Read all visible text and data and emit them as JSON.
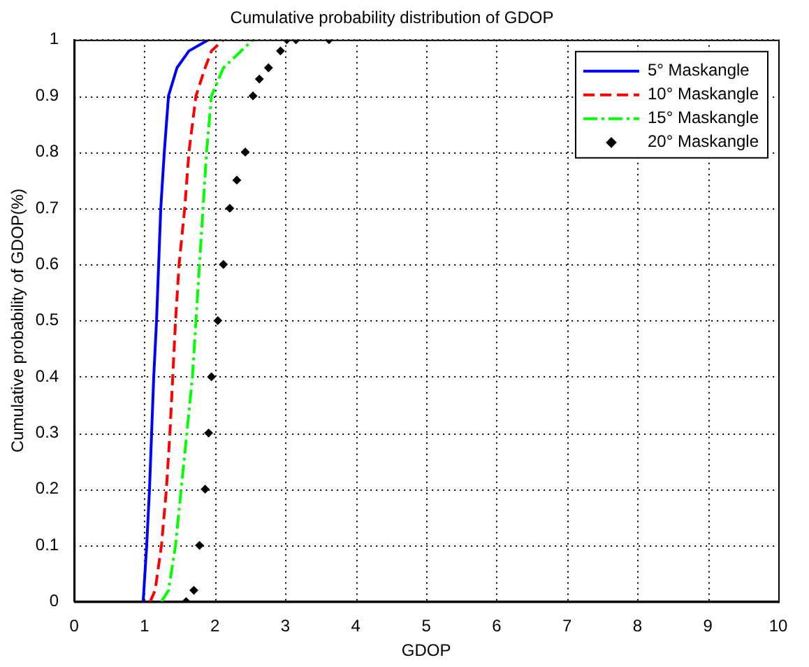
{
  "chart_data": {
    "type": "line",
    "title": "Cumulative probability distribution of GDOP",
    "xlabel": "GDOP",
    "ylabel": "Cumulative probability of GDOP(%)",
    "xlim": [
      0,
      10
    ],
    "xticks": [
      0,
      1,
      2,
      3,
      4,
      5,
      6,
      7,
      8,
      9,
      10
    ],
    "ylim": [
      0,
      1
    ],
    "yticks": [
      0,
      0.1,
      0.2,
      0.3,
      0.4,
      0.5,
      0.6,
      0.7,
      0.8,
      0.9,
      1
    ],
    "grid": true,
    "legend": "top right",
    "series": [
      {
        "name": "5° Maskangle",
        "color": "#0000ff",
        "line_style": "solid",
        "marker": "none",
        "x": [
          0.98,
          1.03,
          1.07,
          1.1,
          1.13,
          1.17,
          1.2,
          1.23,
          1.28,
          1.34,
          1.46,
          1.63,
          1.91
        ],
        "values": [
          0,
          0.1,
          0.2,
          0.3,
          0.4,
          0.5,
          0.6,
          0.7,
          0.8,
          0.9,
          0.95,
          0.98,
          1
        ]
      },
      {
        "name": "10° Maskangle",
        "color": "#ff0000",
        "line_style": "dashed",
        "marker": "none",
        "x": [
          1.08,
          1.15,
          1.24,
          1.31,
          1.36,
          1.4,
          1.44,
          1.49,
          1.57,
          1.63,
          1.73,
          1.86,
          1.95,
          2.12
        ],
        "values": [
          0,
          0.02,
          0.1,
          0.2,
          0.3,
          0.4,
          0.5,
          0.6,
          0.7,
          0.8,
          0.9,
          0.95,
          0.98,
          1
        ]
      },
      {
        "name": "15° Maskangle",
        "color": "#00ff00",
        "line_style": "dashdot",
        "marker": "none",
        "x": [
          1.24,
          1.34,
          1.44,
          1.52,
          1.6,
          1.68,
          1.73,
          1.78,
          1.83,
          1.88,
          1.95,
          2.12,
          2.54
        ],
        "values": [
          0,
          0.02,
          0.1,
          0.2,
          0.3,
          0.4,
          0.5,
          0.6,
          0.7,
          0.8,
          0.9,
          0.95,
          1
        ]
      },
      {
        "name": "20° Maskangle",
        "color": "#000000",
        "type": "scatter",
        "marker": "diamond",
        "x": [
          1.59,
          1.7,
          1.78,
          1.86,
          1.91,
          1.95,
          2.04,
          2.12,
          2.21,
          2.31,
          2.43,
          2.54,
          2.63,
          2.76,
          2.93,
          3.02,
          3.15,
          3.62
        ],
        "values": [
          0,
          0.02,
          0.1,
          0.2,
          0.3,
          0.4,
          0.5,
          0.6,
          0.7,
          0.75,
          0.8,
          0.9,
          0.93,
          0.95,
          0.98,
          1,
          1,
          1
        ]
      }
    ]
  }
}
